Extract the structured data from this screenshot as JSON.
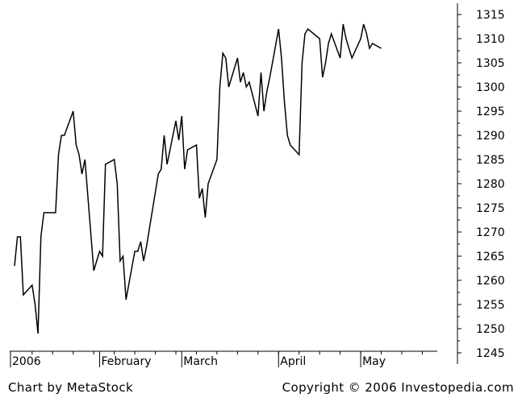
{
  "chart_data": {
    "type": "line",
    "title": "",
    "xlabel": "",
    "ylabel": "",
    "ylim": [
      1245,
      1317
    ],
    "y_ticks": [
      1245,
      1250,
      1255,
      1260,
      1265,
      1270,
      1275,
      1280,
      1285,
      1290,
      1295,
      1300,
      1305,
      1310,
      1315
    ],
    "y_axis_position": "right",
    "grid": false,
    "legend": "none",
    "x_range": [
      "2006-01-03",
      "2006-05-26"
    ],
    "x_tick_labels": [
      {
        "label": "2006",
        "date": "2006-01-03"
      },
      {
        "label": "February",
        "date": "2006-02-01"
      },
      {
        "label": "March",
        "date": "2006-03-01"
      },
      {
        "label": "April",
        "date": "2006-04-03"
      },
      {
        "label": "May",
        "date": "2006-05-01"
      }
    ],
    "line_color": "#000000",
    "series": [
      {
        "x": [
          "2006-01-03",
          "2006-01-04",
          "2006-01-05",
          "2006-01-06",
          "2006-01-09",
          "2006-01-10",
          "2006-01-11",
          "2006-01-12",
          "2006-01-13",
          "2006-01-17",
          "2006-01-18",
          "2006-01-19",
          "2006-01-20",
          "2006-01-23",
          "2006-01-24",
          "2006-01-25",
          "2006-01-26",
          "2006-01-27",
          "2006-01-30",
          "2006-01-31",
          "2006-02-01",
          "2006-02-02",
          "2006-02-03",
          "2006-02-06",
          "2006-02-07",
          "2006-02-08",
          "2006-02-09",
          "2006-02-10",
          "2006-02-13",
          "2006-02-14",
          "2006-02-15",
          "2006-02-16",
          "2006-02-17",
          "2006-02-21",
          "2006-02-22",
          "2006-02-23",
          "2006-02-24",
          "2006-02-27",
          "2006-02-28",
          "2006-03-01",
          "2006-03-02",
          "2006-03-03",
          "2006-03-06",
          "2006-03-07",
          "2006-03-08",
          "2006-03-09",
          "2006-03-10",
          "2006-03-13",
          "2006-03-14",
          "2006-03-15",
          "2006-03-16",
          "2006-03-17",
          "2006-03-20",
          "2006-03-21",
          "2006-03-22",
          "2006-03-23",
          "2006-03-24",
          "2006-03-27",
          "2006-03-28",
          "2006-03-29",
          "2006-03-30",
          "2006-03-31",
          "2006-04-03",
          "2006-04-04",
          "2006-04-05",
          "2006-04-06",
          "2006-04-07",
          "2006-04-10",
          "2006-04-11",
          "2006-04-12",
          "2006-04-13",
          "2006-04-17",
          "2006-04-18",
          "2006-04-19",
          "2006-04-20",
          "2006-04-21",
          "2006-04-24",
          "2006-04-25",
          "2006-04-26",
          "2006-04-27",
          "2006-04-28",
          "2006-05-01",
          "2006-05-02",
          "2006-05-03",
          "2006-05-04",
          "2006-05-05",
          "2006-05-08"
        ],
        "values": [
          1263,
          1269,
          1269,
          1257,
          1259,
          1255,
          1249,
          1269,
          1274,
          1274,
          1286,
          1290,
          1290,
          1295,
          1288,
          1286,
          1282,
          1285,
          1262,
          1264,
          1266,
          1265,
          1284,
          1285,
          1280,
          1264,
          1265,
          1256,
          1266,
          1266,
          1268,
          1264,
          1267,
          1282,
          1283,
          1290,
          1284,
          1293,
          1289,
          1294,
          1283,
          1287,
          1288,
          1277,
          1279,
          1273,
          1280,
          1285,
          1300,
          1307,
          1306,
          1300,
          1306,
          1301,
          1303,
          1300,
          1301,
          1294,
          1303,
          1295,
          1299,
          1302,
          1312,
          1306,
          1297,
          1290,
          1288,
          1286,
          1305,
          1311,
          1312,
          1310,
          1302,
          1305,
          1309,
          1311,
          1306,
          1313,
          1310,
          1308,
          1306,
          1310,
          1313,
          1311,
          1308,
          1309,
          1308
        ]
      }
    ]
  },
  "footer": {
    "left": "Chart by MetaStock",
    "right": "Copyright © 2006 Investopedia.com"
  }
}
